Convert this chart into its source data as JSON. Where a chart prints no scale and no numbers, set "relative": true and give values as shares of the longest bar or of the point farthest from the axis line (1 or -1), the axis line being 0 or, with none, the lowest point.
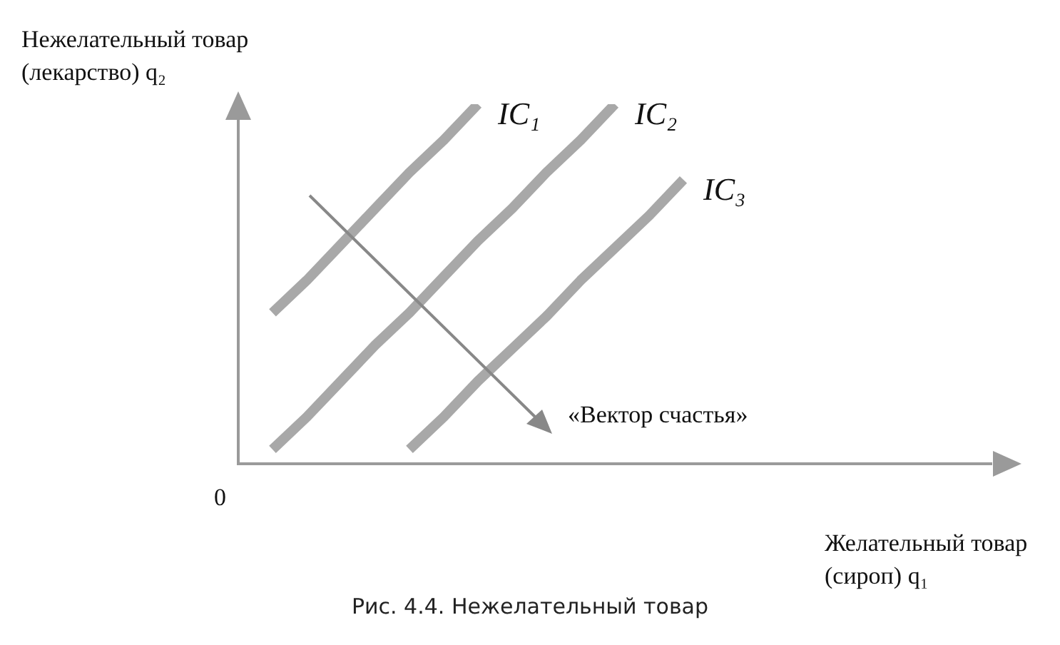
{
  "chart_data": {
    "type": "line",
    "title": "Рис. 4.4. Нежелательный товар",
    "xlabel": "Желательный товар (сироп) q₁",
    "ylabel": "Нежелательный товар (лекарство) q₂",
    "relative": true,
    "legend": false,
    "grid": false,
    "marker": "none",
    "annotations": [
      "0",
      "«Вектор счастья»"
    ],
    "categories": [
      null,
      null,
      null,
      null,
      null,
      null,
      null,
      null,
      null,
      null,
      null,
      null,
      null,
      null,
      null,
      null,
      null,
      null,
      null,
      null,
      null,
      null,
      null
    ],
    "series": [
      {
        "name": "IC₁",
        "color": "#a8a8a8",
        "values": [
          null,
          0.42,
          0.51,
          0.61,
          0.71,
          0.81,
          0.9,
          1.0,
          null,
          null,
          null,
          null,
          null,
          null,
          null,
          null,
          null,
          null,
          null,
          null,
          null,
          null,
          null
        ]
      },
      {
        "name": "IC₂",
        "color": "#a8a8a8",
        "values": [
          null,
          0.04,
          0.13,
          0.23,
          0.33,
          0.42,
          0.52,
          0.62,
          0.71,
          0.81,
          0.9,
          1.0,
          null,
          null,
          null,
          null,
          null,
          null,
          null,
          null,
          null,
          null,
          null
        ]
      },
      {
        "name": "IC₃",
        "color": "#a8a8a8",
        "values": [
          null,
          null,
          null,
          null,
          null,
          0.04,
          0.13,
          0.23,
          0.32,
          0.41,
          0.51,
          0.6,
          0.69,
          0.79,
          null,
          null,
          null,
          null,
          null,
          null,
          null,
          null,
          null
        ]
      }
    ]
  }
}
